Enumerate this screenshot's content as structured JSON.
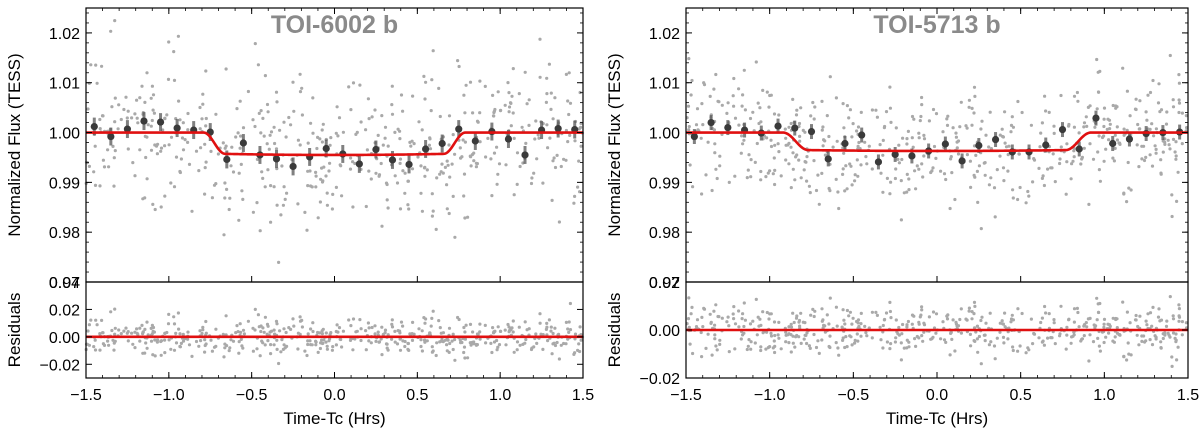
{
  "colors": {
    "scatter": "#a9a9a9",
    "binned": "#3a3a3a",
    "model": "#e01010",
    "title": "#8a8a8a",
    "axis": "#000000"
  },
  "chart_data": [
    {
      "type": "scatter",
      "title": "TOI-6002 b",
      "xlabel": "Time-Tc (Hrs)",
      "ylabel": "Normalized Flux (TESS)",
      "residual_ylabel": "Residuals",
      "xlim": [
        -1.5,
        1.5
      ],
      "ylim": [
        0.97,
        1.025
      ],
      "residual_ylim": [
        -0.03,
        0.04
      ],
      "xticks": [
        -1.5,
        -1.0,
        -0.5,
        0.0,
        0.5,
        1.0,
        1.5
      ],
      "xtick_labels": [
        "−1.5",
        "−1.0",
        "−0.5",
        "0.0",
        "0.5",
        "1.0",
        "1.5"
      ],
      "yticks": [
        0.97,
        0.98,
        0.99,
        1.0,
        1.01,
        1.02
      ],
      "ytick_labels": [
        "0.97",
        "0.98",
        "0.99",
        "1.00",
        "1.01",
        "1.02"
      ],
      "residual_yticks": [
        -0.02,
        0.0,
        0.02,
        0.04
      ],
      "residual_ytick_labels": [
        "−0.02",
        "0.00",
        "0.02",
        "0.04"
      ],
      "transit": {
        "depth": 0.0045,
        "t1": -0.79,
        "t4": 0.79,
        "ingress": 0.13
      },
      "scatter_sigma": 0.0072,
      "scatter_count": 540,
      "seed": 7,
      "binned_series": {
        "x": [
          -1.45,
          -1.35,
          -1.25,
          -1.15,
          -1.05,
          -0.95,
          -0.85,
          -0.75,
          -0.65,
          -0.55,
          -0.45,
          -0.35,
          -0.25,
          -0.15,
          -0.05,
          0.05,
          0.15,
          0.25,
          0.35,
          0.45,
          0.55,
          0.65,
          0.75,
          0.85,
          0.95,
          1.05,
          1.15,
          1.25,
          1.35,
          1.45
        ],
        "y": [
          1.0012,
          0.9992,
          1.0007,
          1.0023,
          1.0021,
          1.0009,
          1.0005,
          1.0001,
          0.9946,
          0.9979,
          0.9955,
          0.9947,
          0.9932,
          0.9951,
          0.9968,
          0.9957,
          0.9937,
          0.9966,
          0.9945,
          0.9936,
          0.9967,
          0.9978,
          1.0007,
          0.9983,
          1.0002,
          0.9987,
          0.9955,
          1.0005,
          1.0008,
          1.0006
        ],
        "err": 0.0018
      },
      "residual_model": 0.0
    },
    {
      "type": "scatter",
      "title": "TOI-5713 b",
      "xlabel": "Time-Tc (Hrs)",
      "ylabel": "Normalized Flux (TESS)",
      "residual_ylabel": "Residuals",
      "xlim": [
        -1.5,
        1.5
      ],
      "ylim": [
        0.97,
        1.025
      ],
      "residual_ylim": [
        -0.02,
        0.02
      ],
      "xticks": [
        -1.5,
        -1.0,
        -0.5,
        0.0,
        0.5,
        1.0,
        1.5
      ],
      "xtick_labels": [
        "−1.5",
        "−1.0",
        "−0.5",
        "0.0",
        "0.5",
        "1.0",
        "1.5"
      ],
      "yticks": [
        0.97,
        0.98,
        0.99,
        1.0,
        1.01,
        1.02
      ],
      "ytick_labels": [
        "0.97",
        "0.98",
        "0.99",
        "1.00",
        "1.01",
        "1.02"
      ],
      "residual_yticks": [
        -0.02,
        0.0,
        0.02
      ],
      "residual_ytick_labels": [
        "−0.02",
        "0.00",
        "0.02"
      ],
      "transit": {
        "depth": 0.0037,
        "t1": -0.92,
        "t4": 0.92,
        "ingress": 0.15
      },
      "scatter_sigma": 0.0058,
      "scatter_count": 560,
      "seed": 13,
      "binned_series": {
        "x": [
          -1.45,
          -1.35,
          -1.25,
          -1.15,
          -1.05,
          -0.95,
          -0.85,
          -0.75,
          -0.65,
          -0.55,
          -0.45,
          -0.35,
          -0.25,
          -0.15,
          -0.05,
          0.05,
          0.15,
          0.25,
          0.35,
          0.45,
          0.55,
          0.65,
          0.75,
          0.85,
          0.95,
          1.05,
          1.15,
          1.25,
          1.35,
          1.45
        ],
        "y": [
          0.9992,
          1.002,
          1.001,
          1.0005,
          0.9999,
          1.0013,
          1.0009,
          1.0002,
          0.9947,
          0.9978,
          0.9995,
          0.9941,
          0.9956,
          0.9953,
          0.9963,
          0.9977,
          0.9943,
          0.9974,
          0.9986,
          0.9961,
          0.9961,
          0.9975,
          1.0006,
          0.9967,
          1.0029,
          0.9978,
          0.9987,
          0.9998,
          1.0,
          1.0001
        ],
        "err": 0.0015
      },
      "residual_model": 0.0
    }
  ]
}
